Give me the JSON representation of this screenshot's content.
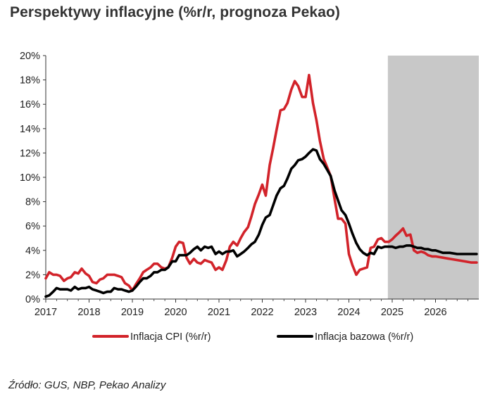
{
  "title": "Perspektywy inflacyjne (%r/r, prognoza Pekao)",
  "source": "Źródło: GUS, NBP, Pekao Analizy",
  "colors": {
    "cpi": "#d2232a",
    "core": "#000000",
    "forecast_shade": "#c8c8c8",
    "axis": "#333333"
  },
  "chart_data": {
    "type": "line",
    "x_unit": "year (decimal)",
    "xlim": [
      2017,
      2027
    ],
    "ylim": [
      0,
      20
    ],
    "y_ticks": [
      0,
      2,
      4,
      6,
      8,
      10,
      12,
      14,
      16,
      18,
      20
    ],
    "y_tick_labels": [
      "0%",
      "2%",
      "4%",
      "6%",
      "8%",
      "10%",
      "12%",
      "14%",
      "16%",
      "18%",
      "20%"
    ],
    "x_ticks": [
      2017,
      2018,
      2019,
      2020,
      2021,
      2022,
      2023,
      2024,
      2025,
      2026
    ],
    "x_tick_labels": [
      "2017",
      "2018",
      "2019",
      "2020",
      "2021",
      "2022",
      "2023",
      "2024",
      "2025",
      "2026"
    ],
    "forecast_start": 2024.9,
    "forecast_end": 2027.0,
    "legend_position": "bottom",
    "series": [
      {
        "name": "Inflacja CPI (%r/r)",
        "points": [
          [
            2017.0,
            1.7
          ],
          [
            2017.08,
            2.2
          ],
          [
            2017.17,
            2.0
          ],
          [
            2017.25,
            2.0
          ],
          [
            2017.33,
            1.9
          ],
          [
            2017.42,
            1.5
          ],
          [
            2017.5,
            1.7
          ],
          [
            2017.58,
            1.8
          ],
          [
            2017.67,
            2.2
          ],
          [
            2017.75,
            2.1
          ],
          [
            2017.83,
            2.5
          ],
          [
            2017.92,
            2.1
          ],
          [
            2018.0,
            1.9
          ],
          [
            2018.08,
            1.4
          ],
          [
            2018.17,
            1.3
          ],
          [
            2018.25,
            1.6
          ],
          [
            2018.33,
            1.7
          ],
          [
            2018.42,
            2.0
          ],
          [
            2018.5,
            2.0
          ],
          [
            2018.58,
            2.0
          ],
          [
            2018.67,
            1.9
          ],
          [
            2018.75,
            1.8
          ],
          [
            2018.83,
            1.3
          ],
          [
            2018.92,
            1.1
          ],
          [
            2019.0,
            0.7
          ],
          [
            2019.08,
            1.2
          ],
          [
            2019.17,
            1.7
          ],
          [
            2019.25,
            2.2
          ],
          [
            2019.33,
            2.4
          ],
          [
            2019.42,
            2.6
          ],
          [
            2019.5,
            2.9
          ],
          [
            2019.58,
            2.9
          ],
          [
            2019.67,
            2.6
          ],
          [
            2019.75,
            2.5
          ],
          [
            2019.83,
            2.6
          ],
          [
            2019.92,
            3.4
          ],
          [
            2020.0,
            4.3
          ],
          [
            2020.08,
            4.7
          ],
          [
            2020.17,
            4.6
          ],
          [
            2020.25,
            3.4
          ],
          [
            2020.33,
            2.9
          ],
          [
            2020.42,
            3.3
          ],
          [
            2020.5,
            3.0
          ],
          [
            2020.58,
            2.9
          ],
          [
            2020.67,
            3.2
          ],
          [
            2020.75,
            3.1
          ],
          [
            2020.83,
            3.0
          ],
          [
            2020.92,
            2.4
          ],
          [
            2021.0,
            2.6
          ],
          [
            2021.08,
            2.4
          ],
          [
            2021.17,
            3.2
          ],
          [
            2021.25,
            4.3
          ],
          [
            2021.33,
            4.7
          ],
          [
            2021.42,
            4.4
          ],
          [
            2021.5,
            5.0
          ],
          [
            2021.58,
            5.5
          ],
          [
            2021.67,
            5.9
          ],
          [
            2021.75,
            6.8
          ],
          [
            2021.83,
            7.8
          ],
          [
            2021.92,
            8.6
          ],
          [
            2022.0,
            9.4
          ],
          [
            2022.08,
            8.5
          ],
          [
            2022.17,
            11.0
          ],
          [
            2022.25,
            12.4
          ],
          [
            2022.33,
            13.9
          ],
          [
            2022.42,
            15.5
          ],
          [
            2022.5,
            15.6
          ],
          [
            2022.58,
            16.1
          ],
          [
            2022.67,
            17.2
          ],
          [
            2022.75,
            17.9
          ],
          [
            2022.83,
            17.5
          ],
          [
            2022.92,
            16.6
          ],
          [
            2023.0,
            16.6
          ],
          [
            2023.08,
            18.4
          ],
          [
            2023.17,
            16.1
          ],
          [
            2023.25,
            14.7
          ],
          [
            2023.33,
            13.0
          ],
          [
            2023.42,
            11.5
          ],
          [
            2023.5,
            10.8
          ],
          [
            2023.58,
            10.1
          ],
          [
            2023.67,
            8.2
          ],
          [
            2023.75,
            6.6
          ],
          [
            2023.83,
            6.6
          ],
          [
            2023.92,
            6.2
          ],
          [
            2024.0,
            3.7
          ],
          [
            2024.08,
            2.8
          ],
          [
            2024.17,
            2.0
          ],
          [
            2024.25,
            2.4
          ],
          [
            2024.33,
            2.5
          ],
          [
            2024.42,
            2.6
          ],
          [
            2024.5,
            4.2
          ],
          [
            2024.58,
            4.3
          ],
          [
            2024.67,
            4.9
          ],
          [
            2024.75,
            5.0
          ],
          [
            2024.83,
            4.7
          ],
          [
            2024.92,
            4.7
          ],
          [
            2025.0,
            4.9
          ],
          [
            2025.08,
            5.2
          ],
          [
            2025.17,
            5.5
          ],
          [
            2025.25,
            5.8
          ],
          [
            2025.33,
            5.2
          ],
          [
            2025.42,
            5.3
          ],
          [
            2025.5,
            4.0
          ],
          [
            2025.58,
            3.8
          ],
          [
            2025.67,
            3.9
          ],
          [
            2025.75,
            3.8
          ],
          [
            2025.83,
            3.6
          ],
          [
            2025.92,
            3.5
          ],
          [
            2026.0,
            3.5
          ],
          [
            2026.17,
            3.4
          ],
          [
            2026.33,
            3.3
          ],
          [
            2026.5,
            3.2
          ],
          [
            2026.67,
            3.1
          ],
          [
            2026.83,
            3.0
          ],
          [
            2026.95,
            3.0
          ]
        ]
      },
      {
        "name": "Inflacja bazowa (%r/r)",
        "points": [
          [
            2017.0,
            0.2
          ],
          [
            2017.08,
            0.3
          ],
          [
            2017.17,
            0.6
          ],
          [
            2017.25,
            0.9
          ],
          [
            2017.33,
            0.8
          ],
          [
            2017.42,
            0.8
          ],
          [
            2017.5,
            0.8
          ],
          [
            2017.58,
            0.7
          ],
          [
            2017.67,
            1.0
          ],
          [
            2017.75,
            0.8
          ],
          [
            2017.83,
            0.9
          ],
          [
            2017.92,
            0.9
          ],
          [
            2018.0,
            1.0
          ],
          [
            2018.08,
            0.8
          ],
          [
            2018.17,
            0.7
          ],
          [
            2018.25,
            0.6
          ],
          [
            2018.33,
            0.5
          ],
          [
            2018.42,
            0.6
          ],
          [
            2018.5,
            0.6
          ],
          [
            2018.58,
            0.9
          ],
          [
            2018.67,
            0.8
          ],
          [
            2018.75,
            0.8
          ],
          [
            2018.83,
            0.7
          ],
          [
            2018.92,
            0.6
          ],
          [
            2019.0,
            0.7
          ],
          [
            2019.08,
            1.0
          ],
          [
            2019.17,
            1.4
          ],
          [
            2019.25,
            1.7
          ],
          [
            2019.33,
            1.7
          ],
          [
            2019.42,
            1.9
          ],
          [
            2019.5,
            2.2
          ],
          [
            2019.58,
            2.2
          ],
          [
            2019.67,
            2.4
          ],
          [
            2019.75,
            2.4
          ],
          [
            2019.83,
            2.6
          ],
          [
            2019.92,
            3.1
          ],
          [
            2020.0,
            3.1
          ],
          [
            2020.08,
            3.6
          ],
          [
            2020.17,
            3.6
          ],
          [
            2020.25,
            3.6
          ],
          [
            2020.33,
            3.8
          ],
          [
            2020.42,
            4.1
          ],
          [
            2020.5,
            4.3
          ],
          [
            2020.58,
            4.0
          ],
          [
            2020.67,
            4.3
          ],
          [
            2020.75,
            4.2
          ],
          [
            2020.83,
            4.3
          ],
          [
            2020.92,
            3.7
          ],
          [
            2021.0,
            3.9
          ],
          [
            2021.08,
            3.7
          ],
          [
            2021.17,
            3.9
          ],
          [
            2021.25,
            3.9
          ],
          [
            2021.33,
            4.0
          ],
          [
            2021.42,
            3.5
          ],
          [
            2021.5,
            3.7
          ],
          [
            2021.58,
            3.9
          ],
          [
            2021.67,
            4.2
          ],
          [
            2021.75,
            4.5
          ],
          [
            2021.83,
            4.7
          ],
          [
            2021.92,
            5.3
          ],
          [
            2022.0,
            6.1
          ],
          [
            2022.08,
            6.7
          ],
          [
            2022.17,
            6.9
          ],
          [
            2022.25,
            7.7
          ],
          [
            2022.33,
            8.5
          ],
          [
            2022.42,
            9.1
          ],
          [
            2022.5,
            9.3
          ],
          [
            2022.58,
            9.9
          ],
          [
            2022.67,
            10.7
          ],
          [
            2022.75,
            11.0
          ],
          [
            2022.83,
            11.4
          ],
          [
            2022.92,
            11.5
          ],
          [
            2023.0,
            11.7
          ],
          [
            2023.08,
            12.0
          ],
          [
            2023.17,
            12.3
          ],
          [
            2023.25,
            12.2
          ],
          [
            2023.33,
            11.5
          ],
          [
            2023.42,
            11.1
          ],
          [
            2023.5,
            10.6
          ],
          [
            2023.58,
            10.1
          ],
          [
            2023.67,
            8.9
          ],
          [
            2023.75,
            8.1
          ],
          [
            2023.83,
            7.3
          ],
          [
            2023.92,
            6.9
          ],
          [
            2024.0,
            6.2
          ],
          [
            2024.08,
            5.4
          ],
          [
            2024.17,
            4.6
          ],
          [
            2024.25,
            4.1
          ],
          [
            2024.33,
            3.8
          ],
          [
            2024.42,
            3.6
          ],
          [
            2024.5,
            3.8
          ],
          [
            2024.58,
            3.7
          ],
          [
            2024.67,
            4.3
          ],
          [
            2024.75,
            4.2
          ],
          [
            2024.83,
            4.3
          ],
          [
            2024.92,
            4.3
          ],
          [
            2025.0,
            4.3
          ],
          [
            2025.08,
            4.2
          ],
          [
            2025.17,
            4.3
          ],
          [
            2025.25,
            4.3
          ],
          [
            2025.33,
            4.4
          ],
          [
            2025.42,
            4.4
          ],
          [
            2025.5,
            4.3
          ],
          [
            2025.58,
            4.2
          ],
          [
            2025.67,
            4.2
          ],
          [
            2025.75,
            4.1
          ],
          [
            2025.83,
            4.1
          ],
          [
            2025.92,
            4.0
          ],
          [
            2026.0,
            4.0
          ],
          [
            2026.17,
            3.8
          ],
          [
            2026.33,
            3.8
          ],
          [
            2026.5,
            3.7
          ],
          [
            2026.67,
            3.7
          ],
          [
            2026.83,
            3.7
          ],
          [
            2026.95,
            3.7
          ]
        ]
      }
    ]
  }
}
